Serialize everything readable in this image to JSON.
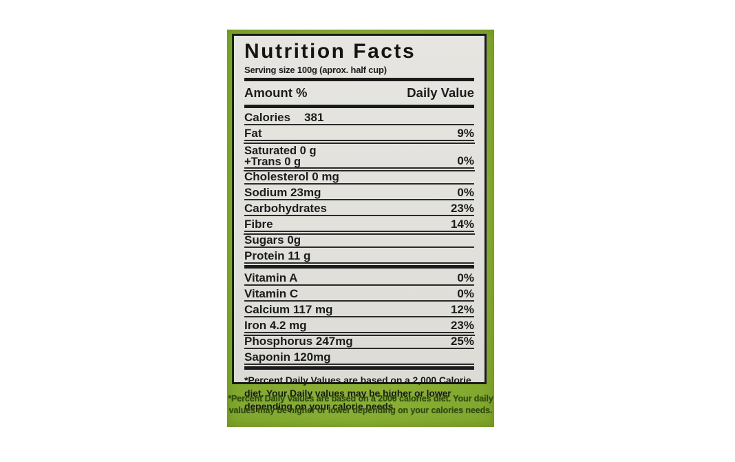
{
  "package": {
    "background_color": "#8bb034",
    "note_text_color": "#2e4a11",
    "footnote": "*Percent Daily Values are based on a 2000 calories diet. Your daily values may be higher or lower depending on your calories needs."
  },
  "label": {
    "background_color": "#e2e1dc",
    "title": "Nutrition Facts",
    "serving_size": "Serving size 100g (aprox. half cup)",
    "columns": {
      "left": "Amount %",
      "right": "Daily Value"
    },
    "rows": [
      {
        "name": "Calories",
        "amount": "381",
        "dv": ""
      },
      {
        "name": "Fat",
        "dv": "9%"
      },
      {
        "name": "Saturated 0 g",
        "name2": "+Trans 0 g",
        "dv": "0%"
      },
      {
        "name": "Cholesterol 0 mg",
        "dv": ""
      },
      {
        "name": "Sodium 23mg",
        "dv": "0%"
      },
      {
        "name": "Carbohydrates",
        "dv": "23%"
      },
      {
        "name": "Fibre",
        "dv": "14%"
      },
      {
        "name": "Sugars 0g",
        "dv": ""
      },
      {
        "name": "Protein 11 g",
        "dv": ""
      },
      {
        "name": "Vitamin A",
        "dv": "0%"
      },
      {
        "name": "Vitamin C",
        "dv": "0%"
      },
      {
        "name": "Calcium 117 mg",
        "dv": "12%"
      },
      {
        "name": "Iron 4.2 mg",
        "dv": "23%"
      },
      {
        "name": "Phosphorus 247mg",
        "dv": "25%"
      },
      {
        "name": "Saponin 120mg",
        "dv": ""
      }
    ],
    "footnote": "*Percent Daily Values are based on a 2,000 Calorie diet. Your Daily values may be higher or lower depending on your calorie needs."
  }
}
